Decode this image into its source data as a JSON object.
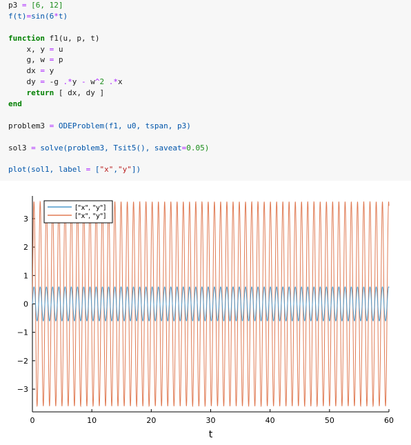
{
  "code": {
    "lines": [
      [
        {
          "t": "p3 ",
          "c": "var"
        },
        {
          "t": "=",
          "c": "op"
        },
        {
          "t": " [6, 12]",
          "c": "num"
        }
      ],
      [
        {
          "t": "f(t)",
          "c": "fn"
        },
        {
          "t": "=",
          "c": "op"
        },
        {
          "t": "sin(6",
          "c": "fn"
        },
        {
          "t": "*",
          "c": "op"
        },
        {
          "t": "t)",
          "c": "fn"
        }
      ],
      [],
      [
        {
          "t": "function",
          "c": "kw"
        },
        {
          "t": " f1(u, p, t)",
          "c": "var"
        }
      ],
      [
        {
          "t": "    x, y ",
          "c": "var"
        },
        {
          "t": "=",
          "c": "op"
        },
        {
          "t": " u",
          "c": "var"
        }
      ],
      [
        {
          "t": "    g, w ",
          "c": "var"
        },
        {
          "t": "=",
          "c": "op"
        },
        {
          "t": " p",
          "c": "var"
        }
      ],
      [
        {
          "t": "    dx ",
          "c": "var"
        },
        {
          "t": "=",
          "c": "op"
        },
        {
          "t": " y",
          "c": "var"
        }
      ],
      [
        {
          "t": "    dy ",
          "c": "var"
        },
        {
          "t": "=",
          "c": "op"
        },
        {
          "t": " -g ",
          "c": "var"
        },
        {
          "t": ".*",
          "c": "op"
        },
        {
          "t": "y ",
          "c": "var"
        },
        {
          "t": "-",
          "c": "op"
        },
        {
          "t": " w",
          "c": "var"
        },
        {
          "t": "^",
          "c": "op"
        },
        {
          "t": "2 ",
          "c": "num"
        },
        {
          "t": ".*",
          "c": "op"
        },
        {
          "t": "x",
          "c": "var"
        }
      ],
      [
        {
          "t": "    ",
          "c": "var"
        },
        {
          "t": "return",
          "c": "kw"
        },
        {
          "t": " [ dx, dy ]",
          "c": "var"
        }
      ],
      [
        {
          "t": "end",
          "c": "kw"
        }
      ],
      [],
      [
        {
          "t": "problem3 ",
          "c": "var"
        },
        {
          "t": "=",
          "c": "op"
        },
        {
          "t": " ODEProblem(f1, u0, tspan, p3)",
          "c": "fn"
        }
      ],
      [],
      [
        {
          "t": "sol3 ",
          "c": "var"
        },
        {
          "t": "=",
          "c": "op"
        },
        {
          "t": " solve(problem3, Tsit5(), saveat",
          "c": "fn"
        },
        {
          "t": "=",
          "c": "op"
        },
        {
          "t": "0.05)",
          "c": "num"
        }
      ],
      [],
      [
        {
          "t": "plot(sol1, label ",
          "c": "fn"
        },
        {
          "t": "=",
          "c": "op"
        },
        {
          "t": " [",
          "c": "fn"
        },
        {
          "t": "\"x\"",
          "c": "str"
        },
        {
          "t": ",",
          "c": "fn"
        },
        {
          "t": "\"y\"",
          "c": "str"
        },
        {
          "t": "])",
          "c": "fn"
        }
      ]
    ]
  },
  "chart_data": {
    "type": "line",
    "xlabel": "t",
    "ylabel": "",
    "xlim": [
      0,
      60
    ],
    "ylim": [
      -3.8,
      3.8
    ],
    "xticks": [
      0,
      10,
      20,
      30,
      40,
      50,
      60
    ],
    "yticks": [
      -3,
      -2,
      -1,
      0,
      1,
      2,
      3
    ],
    "ytick_labels": [
      "−3",
      "−2",
      "−1",
      "0",
      "1",
      "2",
      "3"
    ],
    "grid": false,
    "legend_position": "top-left",
    "series": [
      {
        "name": "[\"x\", \"y\"]",
        "color": "#4e9acb",
        "amplitude": 0.6,
        "angular_frequency": 6
      },
      {
        "name": "[\"x\", \"y\"]",
        "color": "#e07b54",
        "amplitude": 3.6,
        "angular_frequency": 6
      }
    ]
  }
}
